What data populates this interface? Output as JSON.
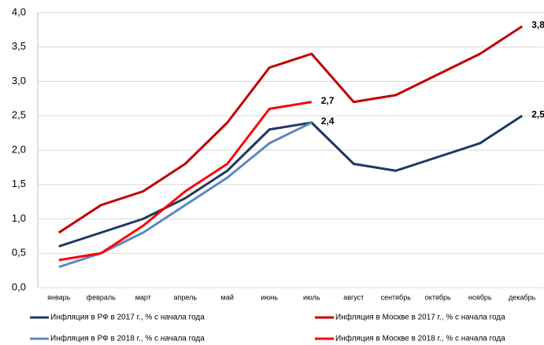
{
  "chart_data": {
    "type": "line",
    "categories": [
      "январь",
      "февраль",
      "март",
      "апрель",
      "май",
      "июнь",
      "июль",
      "август",
      "сентябрь",
      "октябрь",
      "ноябрь",
      "декабрь"
    ],
    "series": [
      {
        "name": "Инфляция в РФ в 2017 г., % с начала года",
        "color": "#1f3864",
        "values": [
          0.6,
          0.8,
          1.0,
          1.3,
          1.7,
          2.3,
          2.4,
          1.8,
          1.7,
          1.9,
          2.1,
          2.5
        ],
        "value_labels": [
          null,
          null,
          null,
          null,
          null,
          null,
          null,
          null,
          null,
          null,
          null,
          "2,5"
        ]
      },
      {
        "name": "Инфляция в Москве в 2017 г., % с начала года",
        "color": "#c00000",
        "values": [
          0.8,
          1.2,
          1.4,
          1.8,
          2.4,
          3.2,
          3.4,
          2.7,
          2.8,
          3.1,
          3.4,
          3.8
        ],
        "value_labels": [
          null,
          null,
          null,
          null,
          null,
          null,
          null,
          null,
          null,
          null,
          null,
          "3,8"
        ]
      },
      {
        "name": "Инфляция в РФ в 2018 г., % с начала года",
        "color": "#5b87c5",
        "values": [
          0.3,
          0.5,
          0.8,
          1.2,
          1.6,
          2.1,
          2.4,
          null,
          null,
          null,
          null,
          null
        ],
        "value_labels": [
          null,
          null,
          null,
          null,
          null,
          null,
          "2,4",
          null,
          null,
          null,
          null,
          null
        ]
      },
      {
        "name": "Инфляция в Москве в 2018 г., % с начала года",
        "color": "#ff0000",
        "values": [
          0.4,
          0.5,
          0.9,
          1.4,
          1.8,
          2.6,
          2.7,
          null,
          null,
          null,
          null,
          null
        ],
        "value_labels": [
          null,
          null,
          null,
          null,
          null,
          null,
          "2,7",
          null,
          null,
          null,
          null,
          null
        ]
      }
    ],
    "ylim": [
      0,
      4
    ],
    "yticks": [
      {
        "value": 0,
        "label": "0,0"
      },
      {
        "value": 0.5,
        "label": "0,5"
      },
      {
        "value": 1,
        "label": "1,0"
      },
      {
        "value": 1.5,
        "label": "1,5"
      },
      {
        "value": 2,
        "label": "2,0"
      },
      {
        "value": 2.5,
        "label": "2,5"
      },
      {
        "value": 3,
        "label": "3,0"
      },
      {
        "value": 3.5,
        "label": "3,5"
      },
      {
        "value": 4,
        "label": "4,0"
      }
    ],
    "grid": true
  }
}
